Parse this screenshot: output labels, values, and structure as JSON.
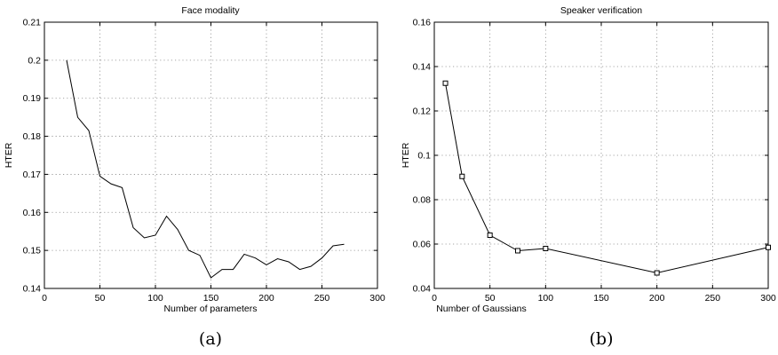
{
  "chart_data": [
    {
      "type": "line",
      "title": "Face modality",
      "xlabel": "Number of parameters",
      "ylabel": "HTER",
      "caption": "(a)",
      "xlim": [
        0,
        300
      ],
      "ylim": [
        0.14,
        0.21
      ],
      "xticks": [
        0,
        50,
        100,
        150,
        200,
        250,
        300
      ],
      "yticks": [
        0.14,
        0.15,
        0.16,
        0.17,
        0.18,
        0.19,
        0.2,
        0.21
      ],
      "grid": true,
      "markers": false,
      "x": [
        20,
        30,
        40,
        50,
        60,
        70,
        80,
        90,
        100,
        110,
        120,
        130,
        140,
        150,
        160,
        170,
        180,
        190,
        200,
        210,
        220,
        230,
        240,
        250,
        260,
        270
      ],
      "y": [
        0.2,
        0.185,
        0.1815,
        0.1695,
        0.1675,
        0.1665,
        0.156,
        0.1533,
        0.154,
        0.159,
        0.1555,
        0.15,
        0.1487,
        0.1428,
        0.145,
        0.145,
        0.149,
        0.148,
        0.1462,
        0.1478,
        0.147,
        0.145,
        0.1458,
        0.148,
        0.1512,
        0.1516
      ]
    },
    {
      "type": "line",
      "title": "Speaker verification",
      "xlabel": "Number of Gaussians",
      "ylabel": "HTER",
      "caption": "(b)",
      "xlim": [
        0,
        300
      ],
      "ylim": [
        0.04,
        0.16
      ],
      "xticks": [
        0,
        50,
        100,
        150,
        200,
        250,
        300
      ],
      "yticks": [
        0.04,
        0.06,
        0.08,
        0.1,
        0.12,
        0.14,
        0.16
      ],
      "grid": true,
      "markers": true,
      "marker_shape": "square",
      "x": [
        10,
        25,
        50,
        75,
        100,
        200,
        300
      ],
      "y": [
        0.1325,
        0.0905,
        0.064,
        0.057,
        0.058,
        0.047,
        0.0585
      ]
    }
  ]
}
